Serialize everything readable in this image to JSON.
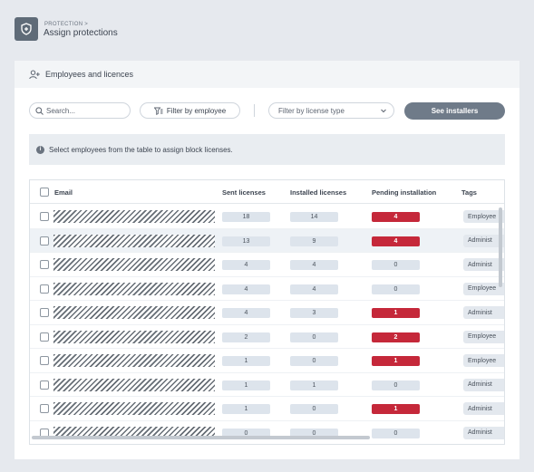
{
  "header": {
    "breadcrumb": "PROTECTION >",
    "title": "Assign protections"
  },
  "card": {
    "title": "Employees and licences"
  },
  "toolbar": {
    "search_placeholder": "Search...",
    "filter_employee": "Filter by employee",
    "filter_license_placeholder": "Filter by license type",
    "see_installers": "See installers"
  },
  "info": {
    "text": "Select employees from the table to assign block licenses."
  },
  "table": {
    "columns": {
      "email": "Email",
      "sent": "Sent licenses",
      "installed": "Installed licenses",
      "pending": "Pending installation",
      "tags": "Tags"
    },
    "rows": [
      {
        "sent": "18",
        "installed": "14",
        "pending": "4",
        "pending_alert": true,
        "tag": "Employee"
      },
      {
        "sent": "13",
        "installed": "9",
        "pending": "4",
        "pending_alert": true,
        "tag": "Administ"
      },
      {
        "sent": "4",
        "installed": "4",
        "pending": "0",
        "pending_alert": false,
        "tag": "Administ"
      },
      {
        "sent": "4",
        "installed": "4",
        "pending": "0",
        "pending_alert": false,
        "tag": "Employee"
      },
      {
        "sent": "4",
        "installed": "3",
        "pending": "1",
        "pending_alert": true,
        "tag": "Administ"
      },
      {
        "sent": "2",
        "installed": "0",
        "pending": "2",
        "pending_alert": true,
        "tag": "Employee"
      },
      {
        "sent": "1",
        "installed": "0",
        "pending": "1",
        "pending_alert": true,
        "tag": "Employee"
      },
      {
        "sent": "1",
        "installed": "1",
        "pending": "0",
        "pending_alert": false,
        "tag": "Administ"
      },
      {
        "sent": "1",
        "installed": "0",
        "pending": "1",
        "pending_alert": true,
        "tag": "Administ"
      },
      {
        "sent": "0",
        "installed": "0",
        "pending": "0",
        "pending_alert": false,
        "tag": "Administ"
      }
    ]
  },
  "colors": {
    "primary_button": "#6f7b89",
    "alert": "#c5283a",
    "pill": "#dde4ec"
  }
}
